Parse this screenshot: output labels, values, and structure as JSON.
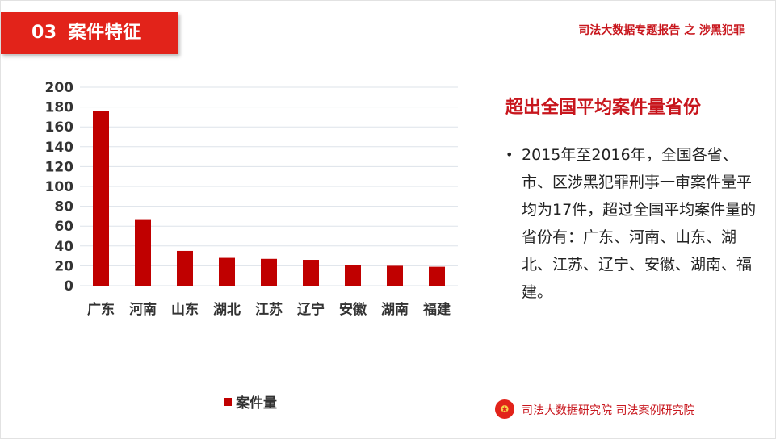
{
  "header": {
    "section_number": "03",
    "section_title": "案件特征",
    "report_title": "司法大数据专题报告 之 涉黑犯罪"
  },
  "colors": {
    "accent": "#e2231a",
    "bar": "#c00000",
    "title_red": "#c8161d"
  },
  "chart_data": {
    "type": "bar",
    "categories": [
      "广东",
      "河南",
      "山东",
      "湖北",
      "江苏",
      "辽宁",
      "安徽",
      "湖南",
      "福建"
    ],
    "series": [
      {
        "name": "案件量",
        "values": [
          176,
          67,
          35,
          28,
          27,
          26,
          21,
          20,
          19
        ]
      }
    ],
    "ylim": [
      0,
      200
    ],
    "yticks": [
      0,
      20,
      40,
      60,
      80,
      100,
      120,
      140,
      160,
      180,
      200
    ],
    "grid": true,
    "legend_position": "bottom",
    "title": "",
    "xlabel": "",
    "ylabel": ""
  },
  "side": {
    "title": "超出全国平均案件量省份",
    "bullet_symbol": "•",
    "paragraph": "2015年至2016年，全国各省、市、区涉黑犯罪刑事一审案件量平均为17件，超过全国平均案件量的省份有：广东、河南、山东、湖北、江苏、辽宁、安徽、湖南、福建。"
  },
  "footer": {
    "logo_icon": "court-emblem-icon",
    "text": "司法大数据研究院 司法案例研究院"
  }
}
